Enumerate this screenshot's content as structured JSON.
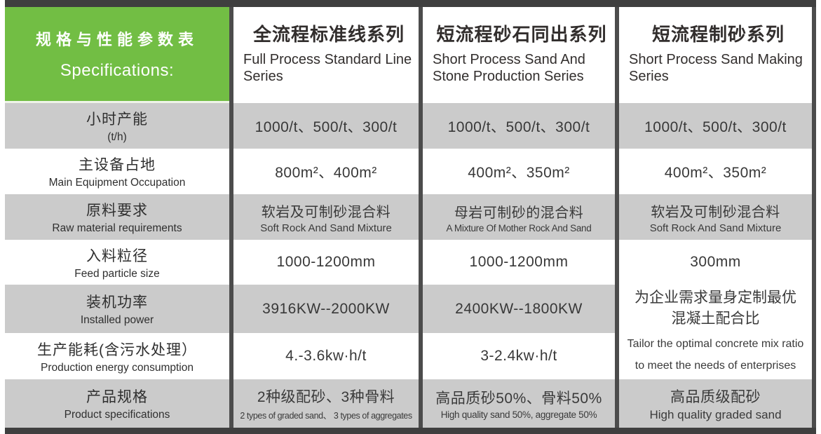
{
  "colors": {
    "accent_green": "#72be44",
    "row_gray": "#cbcbcb",
    "divider_dark": "#4c4c4c",
    "bar_dark": "#3f3f3f"
  },
  "table": {
    "corner": {
      "zh": "规格与性能参数表",
      "en": "Specifications:"
    },
    "columns": [
      {
        "zh": "全流程标准线系列",
        "en": "Full Process Standard Line Series"
      },
      {
        "zh": "短流程砂石同出系列",
        "en": "Short Process Sand And Stone Production Series"
      },
      {
        "zh": "短流程制砂系列",
        "en": "Short Process Sand Making Series"
      }
    ],
    "rows": [
      {
        "label": {
          "zh": "小时产能",
          "en": "(t/h)"
        },
        "cells": [
          {
            "text": "1000/t、500/t、300/t"
          },
          {
            "text": "1000/t、500/t、300/t"
          },
          {
            "text": "1000/t、500/t、300/t"
          }
        ]
      },
      {
        "label": {
          "zh": "主设备占地",
          "en": "Main Equipment Occupation"
        },
        "cells": [
          {
            "text": "800m²、400m²"
          },
          {
            "text": "400m²、350m²"
          },
          {
            "text": "400m²、350m²"
          }
        ]
      },
      {
        "label": {
          "zh": "原料要求",
          "en": "Raw material requirements"
        },
        "cells": [
          {
            "zh": "软岩及可制砂混合料",
            "en": "Soft Rock And Sand Mixture"
          },
          {
            "zh": "母岩可制砂的混合料",
            "en": "A Mixture Of Mother Rock And Sand"
          },
          {
            "zh": "软岩及可制砂混合料",
            "en": "Soft Rock And Sand Mixture"
          }
        ]
      },
      {
        "label": {
          "zh": "入料粒径",
          "en": "Feed particle size"
        },
        "cells": [
          {
            "text": "1000-1200mm"
          },
          {
            "text": "1000-1200mm"
          },
          {
            "text": "300mm"
          }
        ]
      },
      {
        "label": {
          "zh": "装机功率",
          "en": "Installed power"
        },
        "cells": [
          {
            "text": "3916KW--2000KW"
          },
          {
            "text": "2400KW--1800KW"
          }
        ]
      },
      {
        "label": {
          "zh": "生产能耗(含污水处理）",
          "en": "Production energy consumption"
        },
        "cells": [
          {
            "text": "4.-3.6kw·h/t"
          },
          {
            "text": "3-2.4kw·h/t"
          }
        ]
      },
      {
        "label": {
          "zh": "产品规格",
          "en": "Product specifications"
        },
        "cells": [
          {
            "zh": "2种级配砂、3种骨料",
            "en": "2 types of graded sand、 3 types of aggregates"
          },
          {
            "zh": "高品质砂50%、骨料50%",
            "en": "High quality sand 50%, aggregate 50%"
          },
          {
            "zh": "高品质级配砂",
            "en": "High quality graded sand"
          }
        ]
      }
    ],
    "merged_cell": {
      "zh": "为企业需求量身定制最优混凝土配合比",
      "en": "Tailor the optimal concrete mix ratio to meet the needs of enterprises"
    }
  }
}
